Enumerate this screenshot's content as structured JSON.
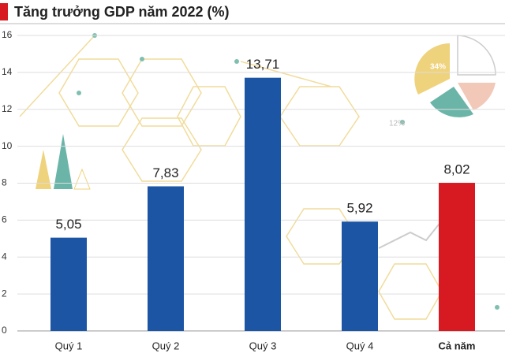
{
  "chart_data": {
    "type": "bar",
    "title": "Tăng trưởng GDP năm 2022 (%)",
    "categories": [
      "Quý 1",
      "Quý 2",
      "Quý 3",
      "Quý 4",
      "Cả năm"
    ],
    "values": [
      5.05,
      7.83,
      13.71,
      5.92,
      8.02
    ],
    "value_labels": [
      "5,05",
      "7,83",
      "13,71",
      "5,92",
      "8,02"
    ],
    "colors": [
      "#1b55a3",
      "#1b55a3",
      "#1b55a3",
      "#1b55a3",
      "#d71a21"
    ],
    "ylim": [
      0,
      16
    ],
    "yticks": [
      0,
      2,
      4,
      6,
      8,
      10,
      12,
      14,
      16
    ],
    "grid": true,
    "annotations": [
      "34%",
      "12%"
    ]
  }
}
